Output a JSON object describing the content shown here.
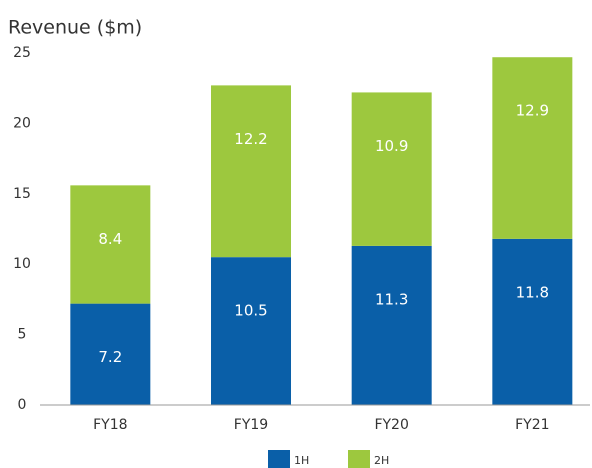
{
  "chart_data": {
    "type": "stacked_bar",
    "title": "Revenue ($m)",
    "categories": [
      "FY18",
      "FY19",
      "FY20",
      "FY21"
    ],
    "series": [
      {
        "name": "1H",
        "color": "#0a5fa8",
        "values": [
          7.2,
          10.5,
          11.3,
          11.8
        ]
      },
      {
        "name": "2H",
        "color": "#9dc83e",
        "values": [
          8.4,
          12.2,
          10.9,
          12.9
        ]
      }
    ],
    "ylim": [
      0,
      25
    ],
    "yticks": [
      0,
      5,
      10,
      15,
      20,
      25
    ],
    "grid": false,
    "legend": "bottom"
  }
}
